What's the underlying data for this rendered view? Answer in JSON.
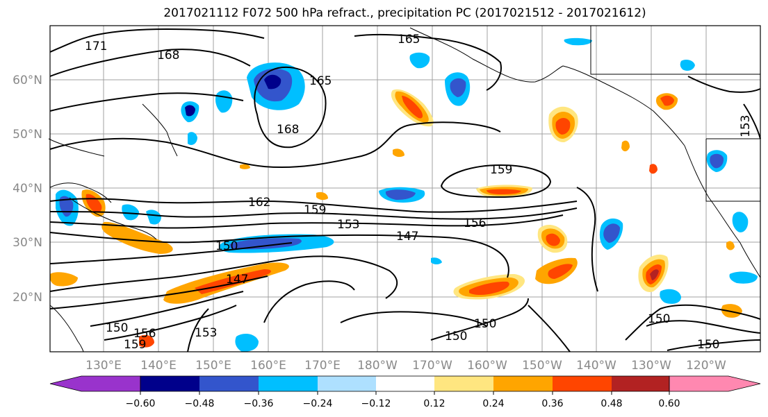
{
  "title": "2017021112 F072 500 hPa refract., precipitation PC (2017021512 - 2017021612)",
  "map": {
    "lat_labels": [
      "60°N",
      "50°N",
      "40°N",
      "30°N",
      "20°N"
    ],
    "lon_labels": [
      "130°E",
      "140°E",
      "150°E",
      "160°E",
      "170°E",
      "180°W",
      "170°W",
      "160°W",
      "150°W",
      "140°W",
      "130°W",
      "120°W"
    ],
    "contour_labels": [
      "171",
      "168",
      "165",
      "165",
      "168",
      "159",
      "162",
      "159",
      "153",
      "156",
      "150",
      "147",
      "147",
      "150",
      "156",
      "159",
      "153",
      "150",
      "150",
      "150",
      "150",
      "153"
    ],
    "colors": {
      "axis_label": "#888888",
      "contour": "#000000",
      "grid": "#a0a0a0"
    }
  },
  "colorbar": {
    "ticks": [
      "−0.60",
      "−0.48",
      "−0.36",
      "−0.24",
      "−0.12",
      "0.12",
      "0.24",
      "0.36",
      "0.48",
      "0.60"
    ],
    "colors": [
      "#9933cc",
      "#00008b",
      "#3355cc",
      "#00bfff",
      "#aee0ff",
      "#ffffff",
      "#ffe680",
      "#ffa500",
      "#ff4500",
      "#b22222",
      "#ff88b0"
    ]
  }
}
